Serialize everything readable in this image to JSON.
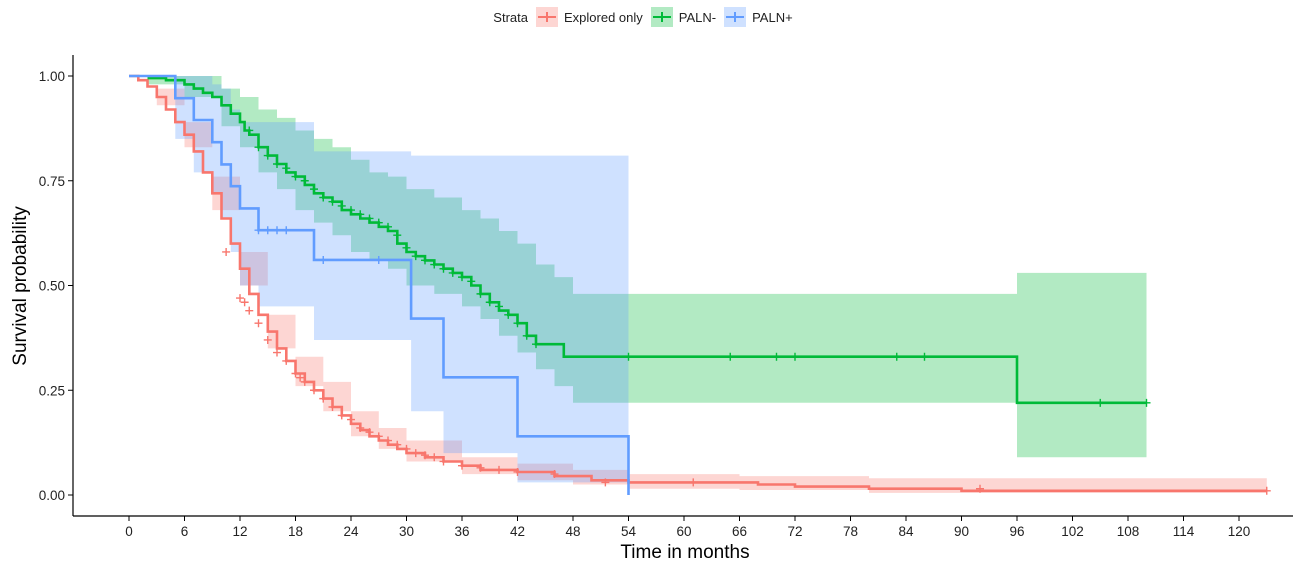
{
  "chart_data": {
    "type": "line",
    "subtype": "kaplan-meier",
    "title": "",
    "xlabel": "Time in months",
    "ylabel": "Survival probability",
    "xlim": [
      -5,
      125
    ],
    "ylim": [
      0,
      1
    ],
    "xticks": [
      0,
      6,
      12,
      18,
      24,
      30,
      36,
      42,
      48,
      54,
      60,
      66,
      72,
      78,
      84,
      90,
      96,
      102,
      108,
      114,
      120
    ],
    "yticks": [
      "0.00",
      "0.25",
      "0.50",
      "0.75",
      "1.00"
    ],
    "legend": {
      "title": "Strata",
      "position": "top",
      "items": [
        "Explored only",
        "PALN-",
        "PALN+"
      ]
    },
    "series": [
      {
        "name": "Explored only",
        "color": "#F8766D",
        "band": "#F8766D",
        "steps": [
          [
            0,
            1.0
          ],
          [
            1,
            0.99
          ],
          [
            2,
            0.975
          ],
          [
            3,
            0.95
          ],
          [
            4,
            0.92
          ],
          [
            5,
            0.89
          ],
          [
            6,
            0.86
          ],
          [
            7,
            0.82
          ],
          [
            8,
            0.77
          ],
          [
            9,
            0.72
          ],
          [
            10,
            0.66
          ],
          [
            11,
            0.6
          ],
          [
            12,
            0.54
          ],
          [
            13,
            0.48
          ],
          [
            14,
            0.43
          ],
          [
            15,
            0.39
          ],
          [
            16,
            0.35
          ],
          [
            17,
            0.32
          ],
          [
            18,
            0.29
          ],
          [
            19,
            0.27
          ],
          [
            20,
            0.25
          ],
          [
            21,
            0.23
          ],
          [
            22,
            0.21
          ],
          [
            23,
            0.19
          ],
          [
            24,
            0.17
          ],
          [
            25,
            0.155
          ],
          [
            26,
            0.14
          ],
          [
            27,
            0.13
          ],
          [
            28,
            0.12
          ],
          [
            29,
            0.11
          ],
          [
            30,
            0.1
          ],
          [
            32,
            0.09
          ],
          [
            34,
            0.08
          ],
          [
            36,
            0.07
          ],
          [
            38,
            0.06
          ],
          [
            42,
            0.055
          ],
          [
            46,
            0.045
          ],
          [
            50,
            0.035
          ],
          [
            54,
            0.03
          ],
          [
            60,
            0.03
          ],
          [
            68,
            0.025
          ],
          [
            72,
            0.02
          ],
          [
            80,
            0.015
          ],
          [
            90,
            0.01
          ],
          [
            123,
            0.01
          ]
        ],
        "band_steps": [
          [
            0,
            1.0,
            1.0
          ],
          [
            3,
            0.97,
            0.93
          ],
          [
            6,
            0.89,
            0.83
          ],
          [
            9,
            0.76,
            0.68
          ],
          [
            12,
            0.58,
            0.5
          ],
          [
            15,
            0.43,
            0.35
          ],
          [
            18,
            0.33,
            0.26
          ],
          [
            21,
            0.27,
            0.2
          ],
          [
            24,
            0.2,
            0.14
          ],
          [
            27,
            0.16,
            0.11
          ],
          [
            30,
            0.13,
            0.08
          ],
          [
            36,
            0.09,
            0.05
          ],
          [
            42,
            0.075,
            0.035
          ],
          [
            48,
            0.06,
            0.025
          ],
          [
            54,
            0.05,
            0.015
          ],
          [
            66,
            0.045,
            0.012
          ],
          [
            80,
            0.04,
            0.005
          ],
          [
            123,
            0.035,
            0.0
          ]
        ],
        "censor": [
          [
            10.5,
            0.58
          ],
          [
            12,
            0.47
          ],
          [
            12.5,
            0.46
          ],
          [
            13,
            0.44
          ],
          [
            14,
            0.41
          ],
          [
            15,
            0.37
          ],
          [
            16,
            0.34
          ],
          [
            17,
            0.32
          ],
          [
            18,
            0.29
          ],
          [
            18.5,
            0.28
          ],
          [
            19,
            0.27
          ],
          [
            20,
            0.25
          ],
          [
            21,
            0.23
          ],
          [
            22,
            0.21
          ],
          [
            23,
            0.19
          ],
          [
            24,
            0.18
          ],
          [
            25,
            0.16
          ],
          [
            26,
            0.15
          ],
          [
            27,
            0.14
          ],
          [
            28,
            0.13
          ],
          [
            29,
            0.12
          ],
          [
            30,
            0.11
          ],
          [
            31,
            0.1
          ],
          [
            32,
            0.095
          ],
          [
            33,
            0.09
          ],
          [
            34,
            0.08
          ],
          [
            36,
            0.07
          ],
          [
            38,
            0.065
          ],
          [
            40,
            0.06
          ],
          [
            42,
            0.055
          ],
          [
            46,
            0.05
          ],
          [
            51.5,
            0.03
          ],
          [
            61,
            0.03
          ],
          [
            92,
            0.015
          ],
          [
            123,
            0.01
          ]
        ]
      },
      {
        "name": "PALN-",
        "color": "#00BA38",
        "band": "#00BA38",
        "steps": [
          [
            2,
            0.995
          ],
          [
            4,
            0.99
          ],
          [
            6,
            0.98
          ],
          [
            7,
            0.97
          ],
          [
            8,
            0.96
          ],
          [
            9,
            0.95
          ],
          [
            10,
            0.93
          ],
          [
            11,
            0.91
          ],
          [
            12,
            0.89
          ],
          [
            12.5,
            0.87
          ],
          [
            13,
            0.86
          ],
          [
            14,
            0.83
          ],
          [
            15,
            0.81
          ],
          [
            16,
            0.79
          ],
          [
            17,
            0.77
          ],
          [
            18,
            0.76
          ],
          [
            19,
            0.74
          ],
          [
            20,
            0.72
          ],
          [
            21,
            0.71
          ],
          [
            22,
            0.7
          ],
          [
            23,
            0.68
          ],
          [
            24,
            0.67
          ],
          [
            25,
            0.66
          ],
          [
            26,
            0.65
          ],
          [
            27,
            0.64
          ],
          [
            28,
            0.63
          ],
          [
            29,
            0.6
          ],
          [
            30,
            0.58
          ],
          [
            31,
            0.57
          ],
          [
            32,
            0.56
          ],
          [
            33,
            0.55
          ],
          [
            34,
            0.54
          ],
          [
            35,
            0.53
          ],
          [
            36,
            0.52
          ],
          [
            37,
            0.5
          ],
          [
            38,
            0.48
          ],
          [
            39,
            0.46
          ],
          [
            40,
            0.44
          ],
          [
            41,
            0.43
          ],
          [
            42,
            0.41
          ],
          [
            43,
            0.38
          ],
          [
            44,
            0.36
          ],
          [
            47,
            0.33
          ],
          [
            54,
            0.33
          ],
          [
            96,
            0.33
          ],
          [
            96,
            0.22
          ],
          [
            110,
            0.22
          ]
        ],
        "band_steps": [
          [
            2,
            1.0,
            0.98
          ],
          [
            6,
            1.0,
            0.95
          ],
          [
            10,
            0.97,
            0.88
          ],
          [
            12,
            0.95,
            0.83
          ],
          [
            14,
            0.92,
            0.77
          ],
          [
            16,
            0.9,
            0.73
          ],
          [
            18,
            0.87,
            0.68
          ],
          [
            20,
            0.85,
            0.65
          ],
          [
            22,
            0.83,
            0.62
          ],
          [
            24,
            0.8,
            0.58
          ],
          [
            26,
            0.77,
            0.56
          ],
          [
            28,
            0.76,
            0.54
          ],
          [
            30,
            0.73,
            0.5
          ],
          [
            33,
            0.71,
            0.48
          ],
          [
            36,
            0.68,
            0.45
          ],
          [
            38,
            0.66,
            0.42
          ],
          [
            40,
            0.63,
            0.38
          ],
          [
            42,
            0.6,
            0.34
          ],
          [
            44,
            0.55,
            0.3
          ],
          [
            46,
            0.52,
            0.26
          ],
          [
            48,
            0.48,
            0.22
          ],
          [
            96,
            0.48,
            0.22
          ],
          [
            96,
            0.53,
            0.09
          ],
          [
            110,
            0.53,
            0.09
          ]
        ],
        "censor": [
          [
            13,
            0.87
          ],
          [
            14,
            0.83
          ],
          [
            15,
            0.81
          ],
          [
            16,
            0.79
          ],
          [
            17,
            0.78
          ],
          [
            18,
            0.76
          ],
          [
            19,
            0.75
          ],
          [
            20,
            0.73
          ],
          [
            21,
            0.71
          ],
          [
            22,
            0.7
          ],
          [
            23,
            0.69
          ],
          [
            24,
            0.68
          ],
          [
            25,
            0.67
          ],
          [
            26,
            0.66
          ],
          [
            27,
            0.65
          ],
          [
            28,
            0.64
          ],
          [
            29,
            0.62
          ],
          [
            30,
            0.59
          ],
          [
            31,
            0.57
          ],
          [
            32,
            0.56
          ],
          [
            33,
            0.55
          ],
          [
            34,
            0.54
          ],
          [
            35,
            0.53
          ],
          [
            36,
            0.52
          ],
          [
            37,
            0.51
          ],
          [
            38,
            0.48
          ],
          [
            39,
            0.46
          ],
          [
            40,
            0.45
          ],
          [
            41,
            0.43
          ],
          [
            42,
            0.41
          ],
          [
            43,
            0.38
          ],
          [
            44,
            0.36
          ],
          [
            54,
            0.33
          ],
          [
            65,
            0.33
          ],
          [
            70,
            0.33
          ],
          [
            72,
            0.33
          ],
          [
            83,
            0.33
          ],
          [
            86,
            0.33
          ],
          [
            105,
            0.22
          ],
          [
            110,
            0.22
          ]
        ]
      },
      {
        "name": "PALN+",
        "color": "#619CFF",
        "band": "#619CFF",
        "steps": [
          [
            0,
            1.0
          ],
          [
            5,
            1.0
          ],
          [
            5,
            0.947
          ],
          [
            7,
            0.947
          ],
          [
            7,
            0.895
          ],
          [
            9,
            0.895
          ],
          [
            9,
            0.842
          ],
          [
            10,
            0.842
          ],
          [
            10,
            0.789
          ],
          [
            11,
            0.789
          ],
          [
            11,
            0.737
          ],
          [
            12,
            0.737
          ],
          [
            12,
            0.684
          ],
          [
            14,
            0.684
          ],
          [
            14,
            0.632
          ],
          [
            20,
            0.632
          ],
          [
            20,
            0.561
          ],
          [
            30.5,
            0.561
          ],
          [
            30.5,
            0.421
          ],
          [
            34,
            0.421
          ],
          [
            34,
            0.281
          ],
          [
            42,
            0.281
          ],
          [
            42,
            0.14
          ],
          [
            54,
            0.14
          ],
          [
            54,
            0.0
          ]
        ],
        "band_steps": [
          [
            5,
            1.0,
            0.85
          ],
          [
            7,
            1.0,
            0.77
          ],
          [
            9,
            0.98,
            0.72
          ],
          [
            10,
            0.97,
            0.66
          ],
          [
            11,
            0.92,
            0.58
          ],
          [
            12,
            0.89,
            0.5
          ],
          [
            14,
            0.89,
            0.45
          ],
          [
            20,
            0.82,
            0.37
          ],
          [
            30.5,
            0.81,
            0.2
          ],
          [
            34,
            0.81,
            0.1
          ],
          [
            42,
            0.81,
            0.03
          ],
          [
            54,
            0.81,
            0.0
          ]
        ],
        "censor": [
          [
            14,
            0.632
          ],
          [
            15,
            0.632
          ],
          [
            16,
            0.632
          ],
          [
            17,
            0.632
          ],
          [
            21,
            0.561
          ],
          [
            27,
            0.561
          ]
        ]
      }
    ]
  }
}
